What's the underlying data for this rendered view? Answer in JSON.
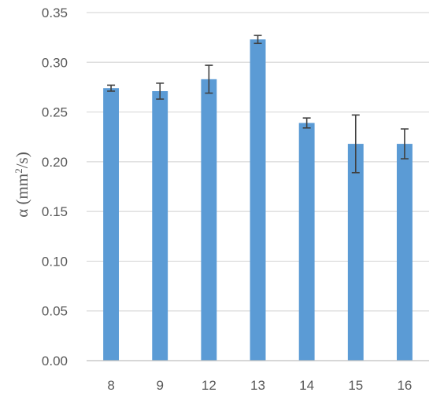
{
  "chart_data": {
    "type": "bar",
    "title": "",
    "xlabel": "",
    "ylabel": "α (mm²/s)",
    "ylabel_parts": [
      "α (mm",
      "2",
      "/s)"
    ],
    "categories": [
      "8",
      "9",
      "12",
      "13",
      "14",
      "15",
      "16"
    ],
    "values": [
      0.274,
      0.271,
      0.283,
      0.323,
      0.239,
      0.218,
      0.218
    ],
    "error": [
      0.003,
      0.008,
      0.014,
      0.004,
      0.005,
      0.029,
      0.015
    ],
    "ylim": [
      0,
      0.35
    ],
    "yticks": [
      "0.00",
      "0.05",
      "0.10",
      "0.15",
      "0.20",
      "0.25",
      "0.30",
      "0.35"
    ],
    "grid": true,
    "bar_color": "#5b9bd5",
    "error_bar_color": "#404040",
    "grid_color": "#d9d9d9",
    "axis_color": "#bfbfbf",
    "text_color": "#595959"
  }
}
